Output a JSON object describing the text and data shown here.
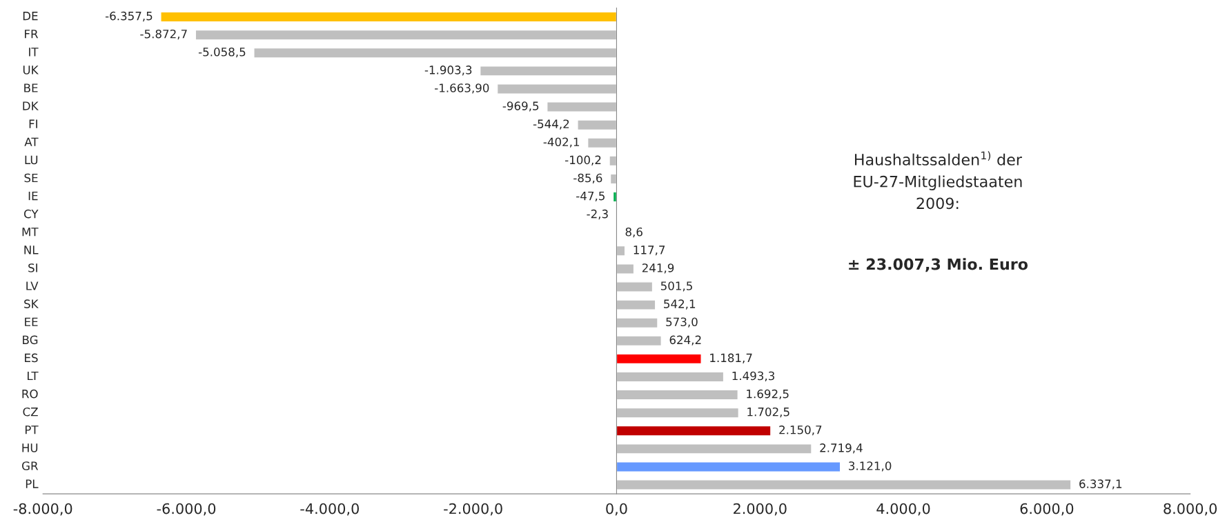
{
  "chart_data": {
    "type": "bar",
    "orientation": "horizontal",
    "categories": [
      "DE",
      "FR",
      "IT",
      "UK",
      "BE",
      "DK",
      "FI",
      "AT",
      "LU",
      "SE",
      "IE",
      "CY",
      "MT",
      "NL",
      "SI",
      "LV",
      "SK",
      "EE",
      "BG",
      "ES",
      "LT",
      "RO",
      "CZ",
      "PT",
      "HU",
      "GR",
      "PL"
    ],
    "values": [
      -6357.5,
      -5872.7,
      -5058.5,
      -1903.3,
      -1663.9,
      -969.5,
      -544.2,
      -402.1,
      -100.2,
      -85.6,
      -47.5,
      -2.3,
      8.6,
      117.7,
      241.9,
      501.5,
      542.1,
      573.0,
      624.2,
      1181.7,
      1493.3,
      1692.5,
      1702.5,
      2150.7,
      2719.4,
      3121.0,
      6337.1
    ],
    "value_labels": [
      "-6.357,5",
      "-5.872,7",
      "-5.058,5",
      "-1.903,3",
      "-1.663,90",
      "-969,5",
      "-544,2",
      "-402,1",
      "-100,2",
      "-85,6",
      "-47,5",
      "-2,3",
      "8,6",
      "117,7",
      "241,9",
      "501,5",
      "542,1",
      "573,0",
      "624,2",
      "1.181,7",
      "1.493,3",
      "1.692,5",
      "1.702,5",
      "2.150,7",
      "2.719,4",
      "3.121,0",
      "6.337,1"
    ],
    "colors": [
      "#ffc000",
      "#bfbfbf",
      "#bfbfbf",
      "#bfbfbf",
      "#bfbfbf",
      "#bfbfbf",
      "#bfbfbf",
      "#bfbfbf",
      "#bfbfbf",
      "#bfbfbf",
      "#00b050",
      "#bfbfbf",
      "#bfbfbf",
      "#bfbfbf",
      "#bfbfbf",
      "#bfbfbf",
      "#bfbfbf",
      "#bfbfbf",
      "#bfbfbf",
      "#ff0000",
      "#bfbfbf",
      "#bfbfbf",
      "#bfbfbf",
      "#c00000",
      "#bfbfbf",
      "#6699ff",
      "#bfbfbf"
    ],
    "xlim": [
      -8000,
      8000
    ],
    "xticks": [
      {
        "value": -8000,
        "label": "-8.000,0"
      },
      {
        "value": -6000,
        "label": "-6.000,0"
      },
      {
        "value": -4000,
        "label": "-4.000,0"
      },
      {
        "value": -2000,
        "label": "-2.000,0"
      },
      {
        "value": 0,
        "label": "0,0"
      },
      {
        "value": 2000,
        "label": "2.000,0"
      },
      {
        "value": 4000,
        "label": "4.000,0"
      },
      {
        "value": 6000,
        "label": "6.000,0"
      },
      {
        "value": 8000,
        "label": "8.000,0"
      }
    ],
    "annotations": [
      "Haushaltssalden$^{1)}$ der\nEU-27-Mitgliedstaaten\n2009:",
      "± 23.007,3 Mio. Euro"
    ]
  }
}
